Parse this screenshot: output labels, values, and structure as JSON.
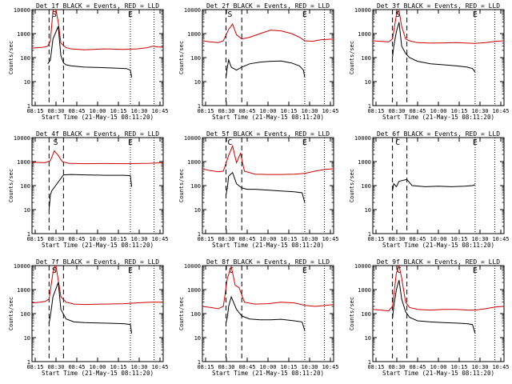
{
  "chart_data": [
    {
      "type": "line",
      "title": "Det 1f BLACK = Events, RED = LLD",
      "xlabel": "Start Time (21-May-15 08:11:20)",
      "ylabel": "Counts/sec",
      "x_ticks": [
        "08:15",
        "08:30",
        "08:45",
        "10:00",
        "10:15",
        "10:30",
        "10:45"
      ],
      "y_ticks": [
        "1",
        "10",
        "100",
        "1000",
        "10000"
      ],
      "yscale": "log",
      "ylim": [
        1,
        10000
      ],
      "markers": [
        {
          "label": "S",
          "x": 0.17
        },
        {
          "label": "E",
          "x": 0.75
        }
      ],
      "dashed_x": [
        0.13,
        0.24
      ],
      "dotted_x": [
        0.75,
        0.93
      ],
      "series": [
        {
          "color": "#cc0000",
          "x": [
            0,
            0.04,
            0.08,
            0.1,
            0.12,
            0.14,
            0.16,
            0.18,
            0.2,
            0.22,
            0.26,
            0.3,
            0.4,
            0.55,
            0.7,
            0.8,
            0.88,
            0.92,
            0.96,
            1.0
          ],
          "y": [
            250,
            260,
            270,
            280,
            300,
            500,
            9000,
            12000,
            3000,
            400,
            260,
            230,
            210,
            230,
            220,
            230,
            260,
            300,
            280,
            270
          ]
        },
        {
          "color": "#000000",
          "x": [
            0.12,
            0.14,
            0.16,
            0.2,
            0.22,
            0.24,
            0.26,
            0.3,
            0.4,
            0.55,
            0.65,
            0.72,
            0.75,
            0.76
          ],
          "y": [
            55,
            80,
            600,
            2000,
            120,
            60,
            50,
            45,
            40,
            38,
            36,
            35,
            30,
            15
          ]
        }
      ]
    },
    {
      "type": "line",
      "title": "Det 2f BLACK = Events, RED = LLD",
      "xlabel": "Start Time (21-May-15 08:11:20)",
      "ylabel": "Counts/sec",
      "x_ticks": [
        "08:15",
        "08:30",
        "08:45",
        "10:00",
        "10:15",
        "10:30",
        "10:45"
      ],
      "y_ticks": [
        "1",
        "10",
        "100",
        "1000",
        "10000"
      ],
      "yscale": "log",
      "ylim": [
        1,
        10000
      ],
      "markers": [
        {
          "label": "S",
          "x": 0.21
        },
        {
          "label": "E",
          "x": 0.78
        }
      ],
      "dashed_x": [
        0.18,
        0.3
      ],
      "dotted_x": [
        0.78,
        0.93
      ],
      "series": [
        {
          "color": "#cc0000",
          "x": [
            0,
            0.06,
            0.12,
            0.16,
            0.2,
            0.23,
            0.26,
            0.3,
            0.36,
            0.44,
            0.52,
            0.6,
            0.68,
            0.74,
            0.78,
            0.84,
            0.9,
            1.0
          ],
          "y": [
            500,
            450,
            420,
            500,
            1500,
            2500,
            900,
            600,
            700,
            1000,
            1400,
            1300,
            1000,
            700,
            500,
            480,
            550,
            600
          ]
        },
        {
          "color": "#000000",
          "x": [
            0.18,
            0.19,
            0.2,
            0.22,
            0.26,
            0.3,
            0.36,
            0.44,
            0.52,
            0.6,
            0.68,
            0.74,
            0.77,
            0.78
          ],
          "y": [
            15,
            40,
            80,
            40,
            30,
            40,
            55,
            65,
            70,
            72,
            60,
            45,
            30,
            15
          ]
        }
      ]
    },
    {
      "type": "line",
      "title": "Det 3f BLACK = Events, RED = LLD",
      "xlabel": "Start Time (21-May-15 08:11:20)",
      "ylabel": "Counts/sec",
      "x_ticks": [
        "08:15",
        "08:30",
        "08:45",
        "10:00",
        "10:15",
        "10:30",
        "10:45"
      ],
      "y_ticks": [
        "1",
        "10",
        "100",
        "1000",
        "10000"
      ],
      "yscale": "log",
      "ylim": [
        1,
        10000
      ],
      "markers": [
        {
          "label": "S",
          "x": 0.19
        },
        {
          "label": "E",
          "x": 0.78
        }
      ],
      "dashed_x": [
        0.15,
        0.26
      ],
      "dotted_x": [
        0.78,
        0.93
      ],
      "series": [
        {
          "color": "#cc0000",
          "x": [
            0,
            0.06,
            0.12,
            0.15,
            0.18,
            0.2,
            0.22,
            0.25,
            0.28,
            0.34,
            0.44,
            0.54,
            0.64,
            0.72,
            0.78,
            0.86,
            0.94,
            1.0
          ],
          "y": [
            500,
            480,
            450,
            600,
            6000,
            9000,
            2000,
            600,
            500,
            420,
            400,
            410,
            420,
            400,
            390,
            420,
            480,
            500
          ]
        },
        {
          "color": "#000000",
          "x": [
            0.15,
            0.16,
            0.18,
            0.2,
            0.22,
            0.25,
            0.28,
            0.34,
            0.44,
            0.54,
            0.64,
            0.72,
            0.76,
            0.78
          ],
          "y": [
            100,
            300,
            1200,
            3000,
            300,
            150,
            100,
            70,
            55,
            50,
            45,
            40,
            35,
            25
          ]
        }
      ]
    },
    {
      "type": "line",
      "title": "Det 4f BLACK = Events, RED = LLD",
      "xlabel": "Start Time (21-May-15 08:11:20)",
      "ylabel": "Counts/sec",
      "x_ticks": [
        "08:15",
        "08:30",
        "08:45",
        "10:00",
        "10:15",
        "10:30",
        "10:45"
      ],
      "y_ticks": [
        "1",
        "10",
        "100",
        "1000",
        "10000"
      ],
      "yscale": "log",
      "ylim": [
        1,
        10000
      ],
      "markers": [
        {
          "label": "S",
          "x": 0.18
        },
        {
          "label": "E",
          "x": 0.75
        }
      ],
      "dashed_x": [
        0.13,
        0.24
      ],
      "dotted_x": [
        0.75,
        0.93
      ],
      "series": [
        {
          "color": "#cc0000",
          "x": [
            0,
            0.06,
            0.1,
            0.14,
            0.17,
            0.2,
            0.23,
            0.28,
            0.4,
            0.55,
            0.7,
            0.8,
            0.9,
            1.0
          ],
          "y": [
            950,
            920,
            900,
            1100,
            2800,
            1800,
            1000,
            850,
            820,
            830,
            820,
            830,
            850,
            900
          ]
        },
        {
          "color": "#000000",
          "x": [
            0.13,
            0.14,
            0.15,
            0.24,
            0.3,
            0.4,
            0.55,
            0.7,
            0.75,
            0.76
          ],
          "y": [
            10,
            40,
            60,
            280,
            290,
            280,
            270,
            270,
            260,
            90
          ]
        }
      ]
    },
    {
      "type": "line",
      "title": "Det 5f BLACK = Events, RED = LLD",
      "xlabel": "Start Time (21-May-15 08:11:20)",
      "ylabel": "Counts/sec",
      "x_ticks": [
        "08:15",
        "08:30",
        "08:45",
        "10:00",
        "10:15",
        "10:30",
        "10:45"
      ],
      "y_ticks": [
        "1",
        "10",
        "100",
        "1000",
        "10000"
      ],
      "yscale": "log",
      "ylim": [
        1,
        10000
      ],
      "markers": [
        {
          "label": "C",
          "x": 0.21
        },
        {
          "label": "E",
          "x": 0.78
        }
      ],
      "dashed_x": [
        0.18,
        0.3
      ],
      "dotted_x": [
        0.78,
        0.93
      ],
      "series": [
        {
          "color": "#cc0000",
          "x": [
            0,
            0.06,
            0.12,
            0.16,
            0.2,
            0.23,
            0.26,
            0.29,
            0.32,
            0.4,
            0.5,
            0.6,
            0.7,
            0.78,
            0.86,
            0.94,
            1.0
          ],
          "y": [
            500,
            420,
            380,
            400,
            1800,
            4500,
            900,
            2200,
            400,
            300,
            290,
            290,
            300,
            320,
            400,
            480,
            500
          ]
        },
        {
          "color": "#000000",
          "x": [
            0.18,
            0.19,
            0.2,
            0.23,
            0.26,
            0.3,
            0.34,
            0.4,
            0.5,
            0.6,
            0.7,
            0.76,
            0.78
          ],
          "y": [
            40,
            80,
            250,
            350,
            120,
            80,
            70,
            70,
            65,
            60,
            55,
            50,
            20
          ]
        }
      ]
    },
    {
      "type": "line",
      "title": "Det 6f BLACK = Events, RED = LLD",
      "xlabel": "Start Time (21-May-15 08:11:20)",
      "ylabel": "Counts/sec",
      "x_ticks": [
        "08:15",
        "08:30",
        "08:45",
        "10:00",
        "10:15",
        "10:30",
        "10:45"
      ],
      "y_ticks": [
        "1",
        "10",
        "100",
        "1000",
        "10000"
      ],
      "yscale": "log",
      "ylim": [
        1,
        10000
      ],
      "markers": [
        {
          "label": "C",
          "x": 0.19
        },
        {
          "label": "E",
          "x": 0.78
        }
      ],
      "dashed_x": [
        0.15,
        0.26
      ],
      "dotted_x": [
        0.78,
        0.93
      ],
      "series": [
        {
          "color": "#000000",
          "x": [
            0.15,
            0.16,
            0.18,
            0.2,
            0.26,
            0.3,
            0.4,
            0.5,
            0.6,
            0.7,
            0.76,
            0.78
          ],
          "y": [
            60,
            120,
            90,
            150,
            180,
            100,
            90,
            95,
            90,
            95,
            100,
            110
          ]
        }
      ]
    },
    {
      "type": "line",
      "title": "Det 7f BLACK = Events, RED = LLD",
      "xlabel": "Start Time (21-May-15 08:11:20)",
      "ylabel": "Counts/sec",
      "x_ticks": [
        "08:15",
        "08:30",
        "08:45",
        "10:00",
        "10:15",
        "10:30",
        "10:45"
      ],
      "y_ticks": [
        "1",
        "10",
        "100",
        "1000",
        "10000"
      ],
      "yscale": "log",
      "ylim": [
        1,
        10000
      ],
      "markers": [
        {
          "label": "S",
          "x": 0.17
        },
        {
          "label": "E",
          "x": 0.75
        }
      ],
      "dashed_x": [
        0.13,
        0.24
      ],
      "dotted_x": [
        0.75,
        0.93
      ],
      "series": [
        {
          "color": "#cc0000",
          "x": [
            0,
            0.06,
            0.1,
            0.13,
            0.16,
            0.18,
            0.2,
            0.22,
            0.26,
            0.32,
            0.4,
            0.55,
            0.7,
            0.8,
            0.9,
            1.0
          ],
          "y": [
            280,
            300,
            320,
            400,
            5000,
            12000,
            2500,
            500,
            300,
            250,
            240,
            250,
            260,
            280,
            300,
            300
          ]
        },
        {
          "color": "#000000",
          "x": [
            0.13,
            0.14,
            0.16,
            0.2,
            0.22,
            0.26,
            0.32,
            0.4,
            0.55,
            0.7,
            0.75,
            0.76
          ],
          "y": [
            40,
            80,
            500,
            2000,
            150,
            60,
            45,
            42,
            40,
            38,
            35,
            15
          ]
        }
      ]
    },
    {
      "type": "line",
      "title": "Det 8f BLACK = Events, RED = LLD",
      "xlabel": "Start Time (21-May-15 08:11:20)",
      "ylabel": "Counts/sec",
      "x_ticks": [
        "08:15",
        "08:30",
        "08:45",
        "10:00",
        "10:15",
        "10:30",
        "10:45"
      ],
      "y_ticks": [
        "1",
        "10",
        "100",
        "1000",
        "10000"
      ],
      "yscale": "log",
      "ylim": [
        1,
        10000
      ],
      "markers": [
        {
          "label": "C",
          "x": 0.22
        },
        {
          "label": "E",
          "x": 0.78
        }
      ],
      "dashed_x": [
        0.18,
        0.3
      ],
      "dotted_x": [
        0.78,
        0.93
      ],
      "series": [
        {
          "color": "#cc0000",
          "x": [
            0,
            0.06,
            0.12,
            0.16,
            0.19,
            0.22,
            0.25,
            0.28,
            0.32,
            0.4,
            0.5,
            0.6,
            0.7,
            0.78,
            0.86,
            0.94,
            1.0
          ],
          "y": [
            200,
            180,
            160,
            200,
            3000,
            9000,
            1500,
            1200,
            300,
            250,
            260,
            300,
            280,
            220,
            200,
            220,
            240
          ]
        },
        {
          "color": "#000000",
          "x": [
            0.18,
            0.19,
            0.2,
            0.22,
            0.26,
            0.3,
            0.36,
            0.44,
            0.52,
            0.6,
            0.7,
            0.76,
            0.78
          ],
          "y": [
            40,
            70,
            200,
            500,
            150,
            80,
            60,
            55,
            55,
            58,
            50,
            45,
            20
          ]
        }
      ]
    },
    {
      "type": "line",
      "title": "Det 9f BLACK = Events, RED = LLD",
      "xlabel": "Start Time (21-May-15 08:11:20)",
      "ylabel": "Counts/sec",
      "x_ticks": [
        "08:15",
        "08:30",
        "08:45",
        "10:00",
        "10:15",
        "10:30",
        "10:45"
      ],
      "y_ticks": [
        "1",
        "10",
        "100",
        "1000",
        "10000"
      ],
      "yscale": "log",
      "ylim": [
        1,
        10000
      ],
      "markers": [
        {
          "label": "C",
          "x": 0.2
        },
        {
          "label": "E",
          "x": 0.78
        }
      ],
      "dashed_x": [
        0.15,
        0.26
      ],
      "dotted_x": [
        0.78,
        0.93
      ],
      "series": [
        {
          "color": "#cc0000",
          "x": [
            0,
            0.06,
            0.12,
            0.15,
            0.18,
            0.2,
            0.22,
            0.25,
            0.28,
            0.34,
            0.44,
            0.54,
            0.64,
            0.72,
            0.78,
            0.86,
            0.94,
            1.0
          ],
          "y": [
            150,
            140,
            130,
            200,
            5000,
            10000,
            3000,
            300,
            180,
            150,
            140,
            150,
            150,
            140,
            140,
            160,
            190,
            200
          ]
        },
        {
          "color": "#000000",
          "x": [
            0.15,
            0.16,
            0.18,
            0.2,
            0.22,
            0.25,
            0.28,
            0.34,
            0.44,
            0.54,
            0.64,
            0.72,
            0.76,
            0.78
          ],
          "y": [
            60,
            200,
            1000,
            2500,
            400,
            120,
            70,
            50,
            45,
            42,
            40,
            38,
            35,
            15
          ]
        }
      ]
    }
  ]
}
